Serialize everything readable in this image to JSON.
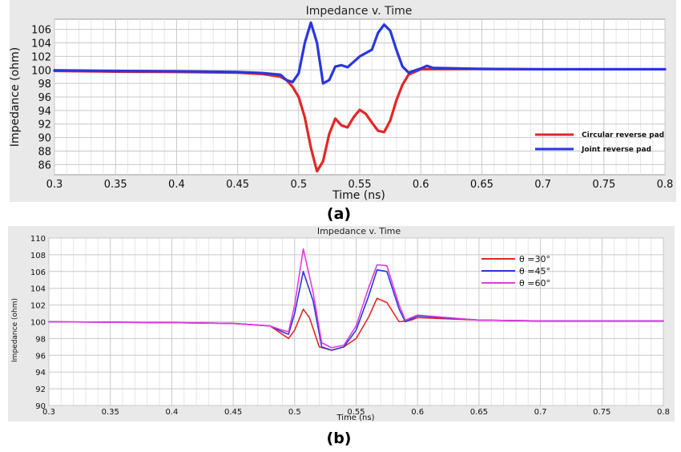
{
  "captions": [
    "(a)",
    "(b)"
  ],
  "chart_data": [
    {
      "type": "line",
      "title": "Impedance v. Time",
      "xlabel": "Time (ns)",
      "ylabel": "Impedance (ohm)",
      "xlim": [
        0.3,
        0.8
      ],
      "ylim": [
        84.5,
        107.5
      ],
      "x_ticks": [
        "0.3",
        "0.35",
        "0.4",
        "0.45",
        "0.5",
        "0.55",
        "0.6",
        "0.65",
        "0.7",
        "0.75",
        "0.8"
      ],
      "y_ticks": [
        "86",
        "88",
        "90",
        "92",
        "94",
        "96",
        "98",
        "100",
        "102",
        "104",
        "106"
      ],
      "grid": true,
      "legend_position": "lower-right",
      "series": [
        {
          "name": "Circular reverse pad",
          "color": "#e32626",
          "points": [
            [
              0.3,
              99.85
            ],
            [
              0.35,
              99.75
            ],
            [
              0.4,
              99.7
            ],
            [
              0.45,
              99.6
            ],
            [
              0.47,
              99.4
            ],
            [
              0.485,
              99.0
            ],
            [
              0.49,
              98.5
            ],
            [
              0.495,
              97.5
            ],
            [
              0.5,
              96.0
            ],
            [
              0.505,
              93.0
            ],
            [
              0.51,
              88.5
            ],
            [
              0.515,
              85.0
            ],
            [
              0.52,
              86.5
            ],
            [
              0.525,
              90.5
            ],
            [
              0.53,
              92.8
            ],
            [
              0.535,
              91.8
            ],
            [
              0.54,
              91.5
            ],
            [
              0.545,
              93.0
            ],
            [
              0.55,
              94.1
            ],
            [
              0.555,
              93.5
            ],
            [
              0.56,
              92.2
            ],
            [
              0.565,
              91.0
            ],
            [
              0.57,
              90.8
            ],
            [
              0.575,
              92.5
            ],
            [
              0.58,
              95.5
            ],
            [
              0.585,
              97.8
            ],
            [
              0.59,
              99.3
            ],
            [
              0.6,
              100.1
            ],
            [
              0.65,
              100.15
            ],
            [
              0.7,
              100.1
            ],
            [
              0.75,
              100.1
            ],
            [
              0.8,
              100.1
            ]
          ]
        },
        {
          "name": "Joint reverse pad",
          "color": "#2a36e0",
          "points": [
            [
              0.3,
              99.95
            ],
            [
              0.35,
              99.85
            ],
            [
              0.4,
              99.8
            ],
            [
              0.45,
              99.7
            ],
            [
              0.47,
              99.55
            ],
            [
              0.485,
              99.3
            ],
            [
              0.49,
              98.5
            ],
            [
              0.495,
              98.2
            ],
            [
              0.5,
              99.5
            ],
            [
              0.505,
              104.0
            ],
            [
              0.51,
              107.0
            ],
            [
              0.515,
              104.0
            ],
            [
              0.52,
              98.0
            ],
            [
              0.525,
              98.5
            ],
            [
              0.53,
              100.5
            ],
            [
              0.535,
              100.7
            ],
            [
              0.54,
              100.4
            ],
            [
              0.545,
              101.2
            ],
            [
              0.55,
              102.0
            ],
            [
              0.56,
              103.0
            ],
            [
              0.565,
              105.5
            ],
            [
              0.57,
              106.7
            ],
            [
              0.575,
              105.8
            ],
            [
              0.58,
              103.0
            ],
            [
              0.585,
              100.5
            ],
            [
              0.59,
              99.6
            ],
            [
              0.6,
              100.2
            ],
            [
              0.605,
              100.6
            ],
            [
              0.61,
              100.3
            ],
            [
              0.65,
              100.15
            ],
            [
              0.7,
              100.1
            ],
            [
              0.8,
              100.1
            ]
          ]
        }
      ]
    },
    {
      "type": "line",
      "title": "Impedance v. Time",
      "xlabel": "Time (ns)",
      "ylabel": "Impedance (ohm)",
      "xlim": [
        0.3,
        0.8
      ],
      "ylim": [
        90,
        110
      ],
      "x_ticks": [
        "0.3",
        "0.35",
        "0.4",
        "0.45",
        "0.5",
        "0.55",
        "0.6",
        "0.65",
        "0.7",
        "0.75",
        "0.8"
      ],
      "y_ticks": [
        "90",
        "92",
        "94",
        "96",
        "98",
        "100",
        "102",
        "104",
        "106",
        "108",
        "110"
      ],
      "grid": true,
      "legend_position": "upper-right",
      "series": [
        {
          "name": "θ =30°",
          "color": "#e32626",
          "points": [
            [
              0.3,
              100.0
            ],
            [
              0.35,
              99.95
            ],
            [
              0.4,
              99.9
            ],
            [
              0.45,
              99.8
            ],
            [
              0.48,
              99.5
            ],
            [
              0.49,
              98.5
            ],
            [
              0.495,
              98.0
            ],
            [
              0.5,
              99.0
            ],
            [
              0.507,
              101.5
            ],
            [
              0.512,
              100.5
            ],
            [
              0.52,
              97.0
            ],
            [
              0.53,
              96.6
            ],
            [
              0.54,
              97.0
            ],
            [
              0.55,
              98.0
            ],
            [
              0.56,
              100.5
            ],
            [
              0.567,
              102.8
            ],
            [
              0.575,
              102.3
            ],
            [
              0.585,
              100.0
            ],
            [
              0.595,
              100.2
            ],
            [
              0.6,
              100.5
            ],
            [
              0.65,
              100.2
            ],
            [
              0.7,
              100.1
            ],
            [
              0.8,
              100.1
            ]
          ]
        },
        {
          "name": "θ =45°",
          "color": "#2a36e0",
          "points": [
            [
              0.3,
              100.0
            ],
            [
              0.35,
              99.95
            ],
            [
              0.4,
              99.9
            ],
            [
              0.45,
              99.8
            ],
            [
              0.48,
              99.5
            ],
            [
              0.49,
              98.8
            ],
            [
              0.495,
              98.5
            ],
            [
              0.5,
              101.0
            ],
            [
              0.507,
              106.0
            ],
            [
              0.515,
              102.5
            ],
            [
              0.522,
              97.0
            ],
            [
              0.53,
              96.6
            ],
            [
              0.54,
              97.0
            ],
            [
              0.55,
              99.0
            ],
            [
              0.56,
              103.0
            ],
            [
              0.567,
              106.2
            ],
            [
              0.575,
              106.0
            ],
            [
              0.585,
              101.5
            ],
            [
              0.59,
              100.0
            ],
            [
              0.6,
              100.7
            ],
            [
              0.65,
              100.2
            ],
            [
              0.7,
              100.1
            ],
            [
              0.8,
              100.1
            ]
          ]
        },
        {
          "name": "θ =60°",
          "color": "#e23be3",
          "points": [
            [
              0.3,
              100.0
            ],
            [
              0.35,
              99.95
            ],
            [
              0.4,
              99.9
            ],
            [
              0.45,
              99.8
            ],
            [
              0.48,
              99.5
            ],
            [
              0.49,
              99.0
            ],
            [
              0.495,
              98.8
            ],
            [
              0.5,
              102.0
            ],
            [
              0.507,
              108.7
            ],
            [
              0.515,
              103.5
            ],
            [
              0.522,
              97.5
            ],
            [
              0.53,
              96.9
            ],
            [
              0.54,
              97.2
            ],
            [
              0.55,
              99.5
            ],
            [
              0.56,
              104.0
            ],
            [
              0.567,
              106.8
            ],
            [
              0.575,
              106.7
            ],
            [
              0.585,
              102.0
            ],
            [
              0.59,
              100.2
            ],
            [
              0.6,
              100.8
            ],
            [
              0.65,
              100.2
            ],
            [
              0.7,
              100.1
            ],
            [
              0.8,
              100.1
            ]
          ]
        }
      ]
    }
  ]
}
